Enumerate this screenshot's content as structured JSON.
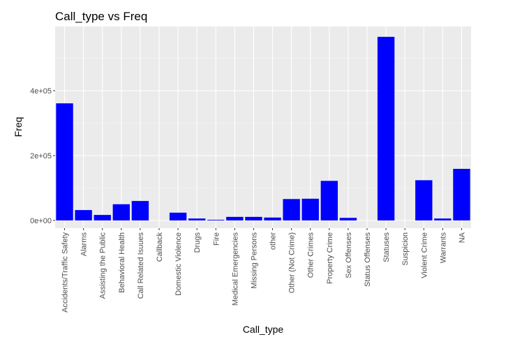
{
  "chart_data": {
    "type": "bar",
    "title": "Call_type vs Freq",
    "xlabel": "Call_type",
    "ylabel": "Freq",
    "categories": [
      "Accidents/Traffic Safety",
      "Alarms",
      "Assisting the Public",
      "Behavioral Health",
      "Call Related Isuues",
      "Callback",
      "Domestic Violence",
      "Drugs",
      "Fire",
      "Medical Emergencies",
      "Missing Persons",
      "other",
      "Other (Not Crime)",
      "Other Crimes",
      "Property Crime",
      "Sex Offenses",
      "Status Offenses",
      "Statuses",
      "Suspicion",
      "Violent Crime",
      "Warrants",
      "NA"
    ],
    "values": [
      361000,
      32000,
      17000,
      50000,
      60000,
      0,
      24000,
      6000,
      2000,
      11000,
      11000,
      9000,
      66000,
      67000,
      122000,
      8000,
      0,
      566000,
      0,
      124000,
      6000,
      159000
    ],
    "ylim": [
      0,
      600000
    ],
    "yticks": [
      0,
      200000,
      400000
    ],
    "ytick_labels": [
      "0e+00",
      "2e+05",
      "4e+05"
    ],
    "bar_color": "#0000FF",
    "panel_color": "#EBEBEB",
    "grid": true
  }
}
